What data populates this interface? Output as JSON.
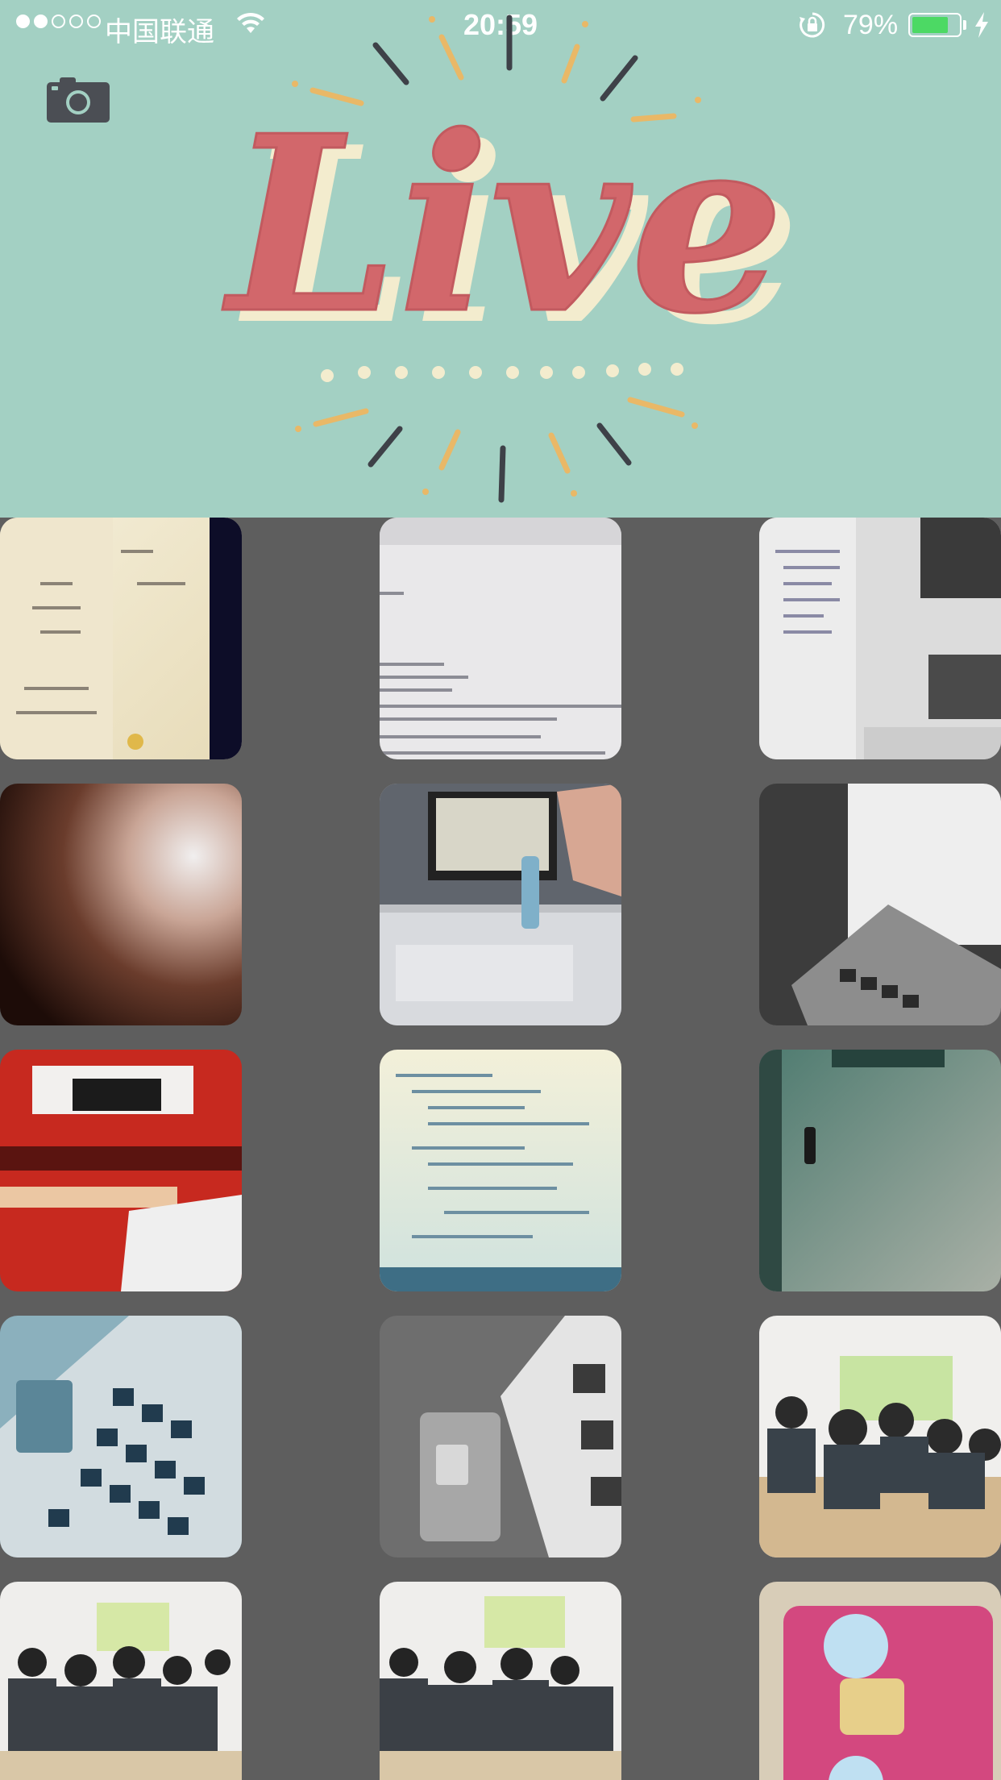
{
  "status_bar": {
    "carrier": "中国联通",
    "time": "20:59",
    "battery_percent": "79%",
    "battery_level": 0.79,
    "signal_bars_filled": 2,
    "signal_bars_total": 5
  },
  "header": {
    "logo_text": "Live",
    "background_color": "#a3d0c3",
    "logo_color": "#d2676b",
    "logo_shadow_color": "#f3ecce",
    "ray_dark_color": "#3e4148",
    "ray_gold_color": "#e9b867"
  },
  "icons": {
    "camera": "camera-icon",
    "wifi": "wifi-icon",
    "rotation_lock": "rotation-lock-icon",
    "charging": "charging-bolt-icon"
  },
  "photos": [
    {
      "name": "photo-document-beige",
      "style": "beige document on screen"
    },
    {
      "name": "photo-code-editor-white",
      "style": "white code editor"
    },
    {
      "name": "photo-interface-builder",
      "style": "xcode interface builder"
    },
    {
      "name": "photo-blurry-finger",
      "style": "blurry finger dark"
    },
    {
      "name": "photo-desk-monitor-hand",
      "style": "desk with monitor and hand"
    },
    {
      "name": "photo-laptop-monochrome",
      "style": "laptop black and white halftone"
    },
    {
      "name": "photo-classroom-red",
      "style": "classroom posterized red"
    },
    {
      "name": "photo-code-screen-yellow",
      "style": "code screen yellowish"
    },
    {
      "name": "photo-green-door",
      "style": "green door"
    },
    {
      "name": "photo-keyboard-blue",
      "style": "keyboard blue tint"
    },
    {
      "name": "photo-keyboard-gray",
      "style": "keyboard gray"
    },
    {
      "name": "photo-classroom-students-1",
      "style": "classroom students"
    },
    {
      "name": "photo-classroom-students-2",
      "style": "classroom students"
    },
    {
      "name": "photo-classroom-students-3",
      "style": "classroom students"
    },
    {
      "name": "photo-sim-card-pink",
      "style": "pink sim card"
    }
  ]
}
